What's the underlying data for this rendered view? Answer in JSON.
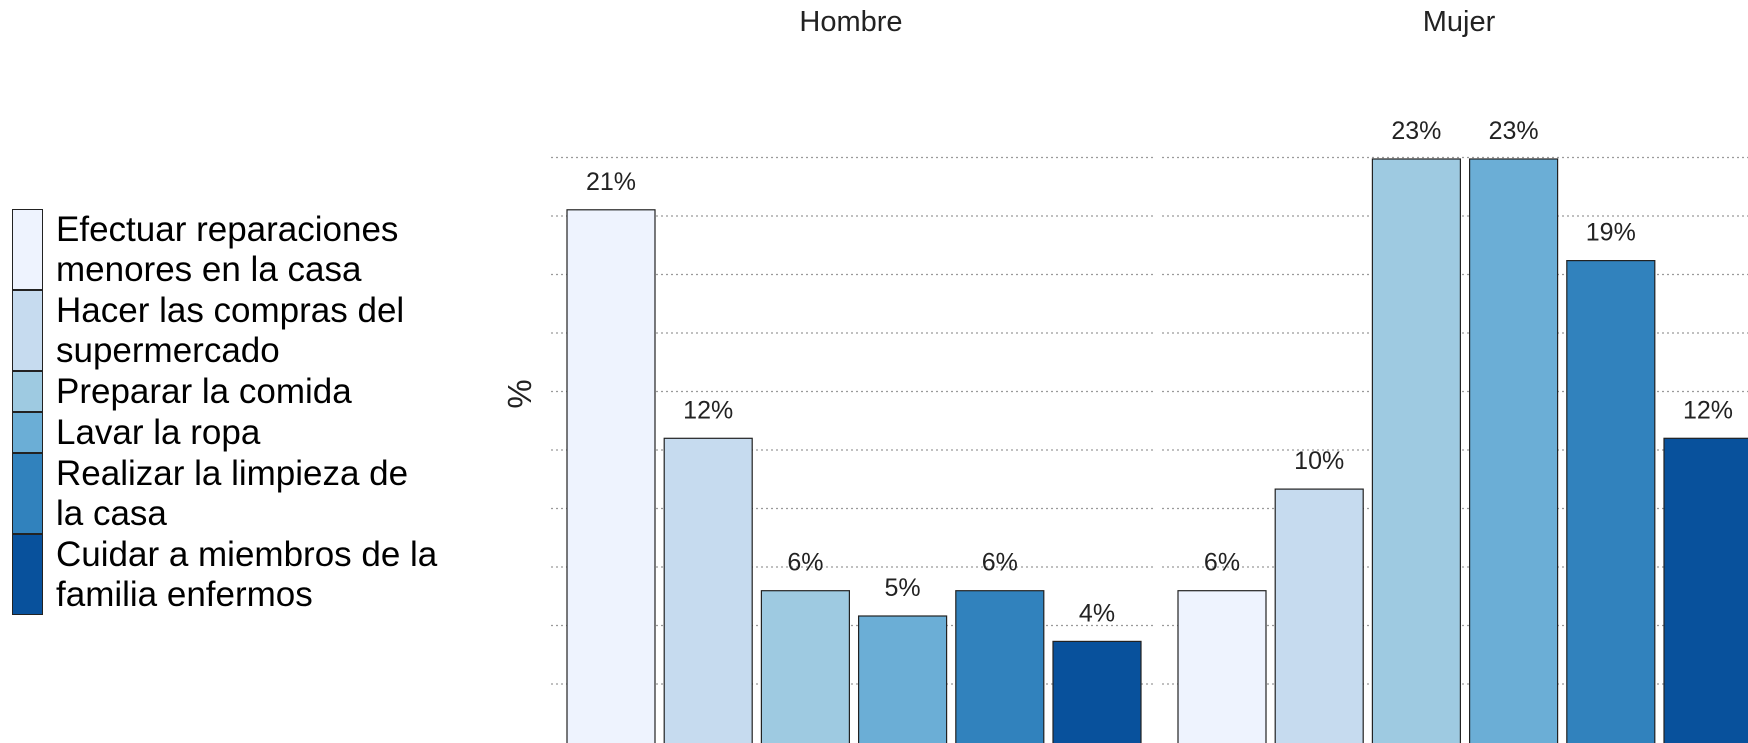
{
  "chart_data": {
    "type": "bar",
    "ylabel": "%",
    "ylim": [
      0,
      23
    ],
    "grid": true,
    "legend_position": "left",
    "label_format": "%",
    "categories": [
      "Efectuar reparaciones menores en la casa",
      "Hacer las compras del supermercado",
      "Preparar la comida",
      "Lavar la ropa",
      "Realizar la limpieza de la casa",
      "Cuidar a miembros de la familia enfermos"
    ],
    "colors": [
      "#eef3fe",
      "#c6dbef",
      "#9ecae1",
      "#6baed6",
      "#3182bd",
      "#08519c"
    ],
    "legend": [
      {
        "lines": [
          "Efectuar reparaciones",
          "menores en la casa"
        ]
      },
      {
        "lines": [
          "Hacer las compras del",
          "supermercado"
        ]
      },
      {
        "lines": [
          "Preparar la comida"
        ]
      },
      {
        "lines": [
          "Lavar la ropa"
        ]
      },
      {
        "lines": [
          "Realizar la limpieza de",
          "la casa"
        ]
      },
      {
        "lines": [
          "Cuidar a miembros de la",
          "familia enfermos"
        ]
      }
    ],
    "panels": [
      {
        "title": "Hombre",
        "values": [
          21,
          12,
          6,
          5,
          6,
          4
        ]
      },
      {
        "title": "Mujer",
        "values": [
          6,
          10,
          23,
          23,
          19,
          12
        ]
      }
    ]
  }
}
